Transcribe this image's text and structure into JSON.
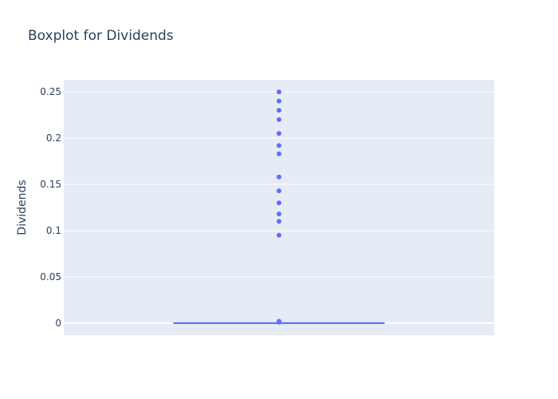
{
  "chart_data": {
    "type": "box",
    "title": "Boxplot for Dividends",
    "xlabel": "",
    "ylabel": "Dividends",
    "ylim": [
      -0.013,
      0.263
    ],
    "y_ticks": [
      0,
      0.05,
      0.1,
      0.15,
      0.2,
      0.25
    ],
    "y_tick_labels": [
      "0",
      "0.05",
      "0.1",
      "0.15",
      "0.2",
      "0.25"
    ],
    "grid": true,
    "legend": false,
    "series": [
      {
        "name": "",
        "q1": 0,
        "median": 0,
        "q3": 0,
        "lower_fence": 0,
        "upper_fence": 0,
        "outliers": [
          0.25,
          0.24,
          0.23,
          0.22,
          0.205,
          0.192,
          0.183,
          0.158,
          0.143,
          0.13,
          0.118,
          0.11,
          0.095,
          0.002,
          0.001
        ]
      }
    ]
  },
  "colors": {
    "plot_background": "#e5ecf6",
    "grid": "#ffffff",
    "box": "#636efa",
    "text": "#2a3f5f"
  }
}
